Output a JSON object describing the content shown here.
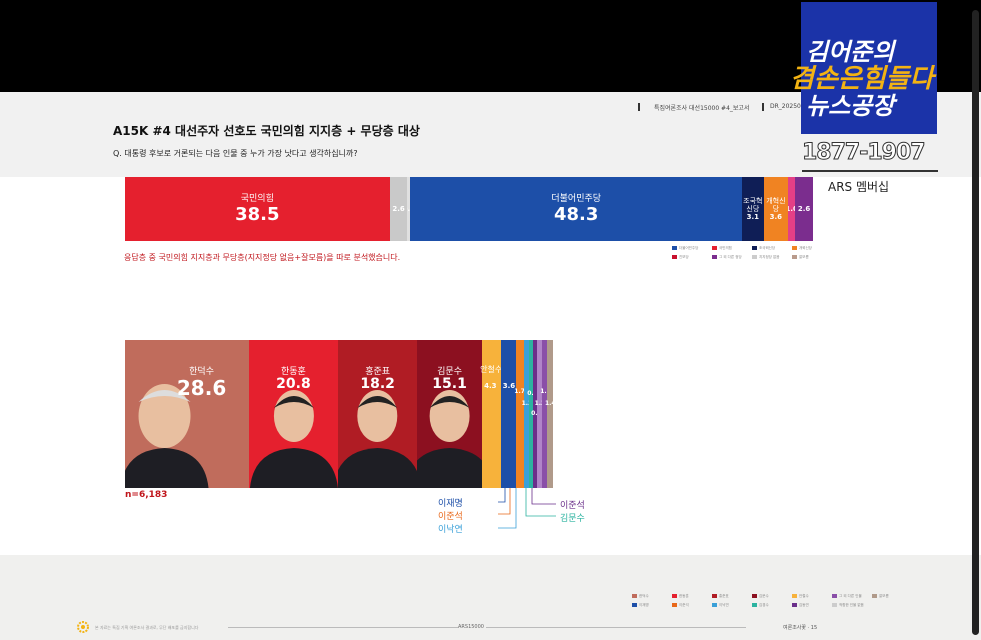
{
  "header": {
    "report_label": "특집여론조사 대선15000 #4_보고서",
    "doc_code": "DR_202504"
  },
  "title": "A15K #4  대선주자 선호도 국민의힘 지지층 + 무당층 대상",
  "question": "Q. 대통령 후보로 거론되는 다음 인물 중 누가 가장 낫다고 생각하십니까?",
  "note": "응답층 중 국민의힘 지지층과 무당층(지지정당 없음+잘모름)을 따로 분석했습니다.",
  "party_bar": {
    "segments": [
      {
        "label": "국민의힘",
        "value": "38.5",
        "color": "#e5202e"
      },
      {
        "label": "",
        "value": "2.6",
        "color": "#c9c9c9"
      },
      {
        "label": "",
        "value": "0.4",
        "color": "#e0e0e0"
      },
      {
        "label": "더불어민주당",
        "value": "48.3",
        "color": "#1d4fa8"
      },
      {
        "label": "조국혁신당",
        "value": "3.1",
        "color": "#0f1e56"
      },
      {
        "label": "개혁신당",
        "value": "3.6",
        "color": "#f08322"
      },
      {
        "label": "",
        "value": "1.0",
        "color": "#e43f86"
      },
      {
        "label": "",
        "value": "2.6",
        "color": "#7b2d8e"
      }
    ],
    "legend": [
      {
        "label": "더불어민주당",
        "color": "#1d4fa8"
      },
      {
        "label": "국민의힘",
        "color": "#e5202e"
      },
      {
        "label": "조국혁신당",
        "color": "#0f1e56"
      },
      {
        "label": "개혁신당",
        "color": "#f08322"
      },
      {
        "label": "진보당",
        "color": "#c8102e"
      },
      {
        "label": "그 외 다른 정당",
        "color": "#7b2d8e"
      },
      {
        "label": "지지정당 없음",
        "color": "#cccccc"
      },
      {
        "label": "잘모름",
        "color": "#b99b8c"
      }
    ]
  },
  "candidate_bar": {
    "n_label": "n=6,183",
    "big": [
      {
        "name": "한덕수",
        "value": "28.6",
        "color": "#c06c5c"
      },
      {
        "name": "한동훈",
        "value": "20.8",
        "color": "#e5202e"
      },
      {
        "name": "홍준표",
        "value": "18.2",
        "color": "#b01c24"
      },
      {
        "name": "김문수",
        "value": "15.1",
        "color": "#8c1020"
      }
    ],
    "small": [
      {
        "name": "안철수",
        "value": "4.3",
        "color": "#f7b23b"
      },
      {
        "name": "",
        "value": "3.6",
        "color": "#1d4fa8"
      },
      {
        "name": "",
        "value": "1.7",
        "color": "#f08322"
      },
      {
        "name": "",
        "value": "1.3",
        "color": "#3aa0d8"
      },
      {
        "name": "",
        "value": "0.9",
        "color": "#2bb3a0"
      },
      {
        "name": "",
        "value": "0.8",
        "color": "#6a2f8a"
      },
      {
        "name": "",
        "value": "1.3",
        "color": "#b084c8"
      },
      {
        "name": "",
        "value": "1.1",
        "color": "#8a4fa8"
      },
      {
        "name": "",
        "value": "1.4",
        "color": "#b09a8a"
      }
    ],
    "callouts_left": [
      {
        "text": "이재명",
        "color": "#1d4fa8"
      },
      {
        "text": "이준석",
        "color": "#e8681a"
      },
      {
        "text": "이낙연",
        "color": "#3aa0d8"
      }
    ],
    "callouts_right": [
      {
        "text": "이준석",
        "color": "#6a2f8a"
      },
      {
        "text": "김문수",
        "color": "#2bb3a0"
      }
    ]
  },
  "footer": {
    "legend": [
      {
        "label": "한덕수",
        "color": "#c06c5c"
      },
      {
        "label": "이재명",
        "color": "#1d4fa8"
      },
      {
        "label": "한동훈",
        "color": "#e5202e"
      },
      {
        "label": "이준석",
        "color": "#e8681a"
      },
      {
        "label": "홍준표",
        "color": "#b01c24"
      },
      {
        "label": "이낙연",
        "color": "#3aa0d8"
      },
      {
        "label": "김문수",
        "color": "#8c1020"
      },
      {
        "label": "김경수",
        "color": "#2bb3a0"
      },
      {
        "label": "안철수",
        "color": "#f7b23b"
      },
      {
        "label": "김동연",
        "color": "#6a2f8a"
      },
      {
        "label": "그 외 다른 인물",
        "color": "#8a4fa8"
      },
      {
        "label": "적합한 인물 없음",
        "color": "#cccccc"
      },
      {
        "label": "잘모름",
        "color": "#b09a8a"
      }
    ],
    "left_note": "본 자료는 특집 기획 여론조사 결과로, 무단 배포를 금지합니다",
    "center": "ARS15000",
    "right": "여론조사꽃 · 15"
  },
  "overlay": {
    "logo_line1": "김어준의",
    "logo_line2": "겸손은힘들다",
    "logo_line3": "뉴스공장",
    "phone": "1877-1907",
    "ars": "ARS 멤버십"
  }
}
